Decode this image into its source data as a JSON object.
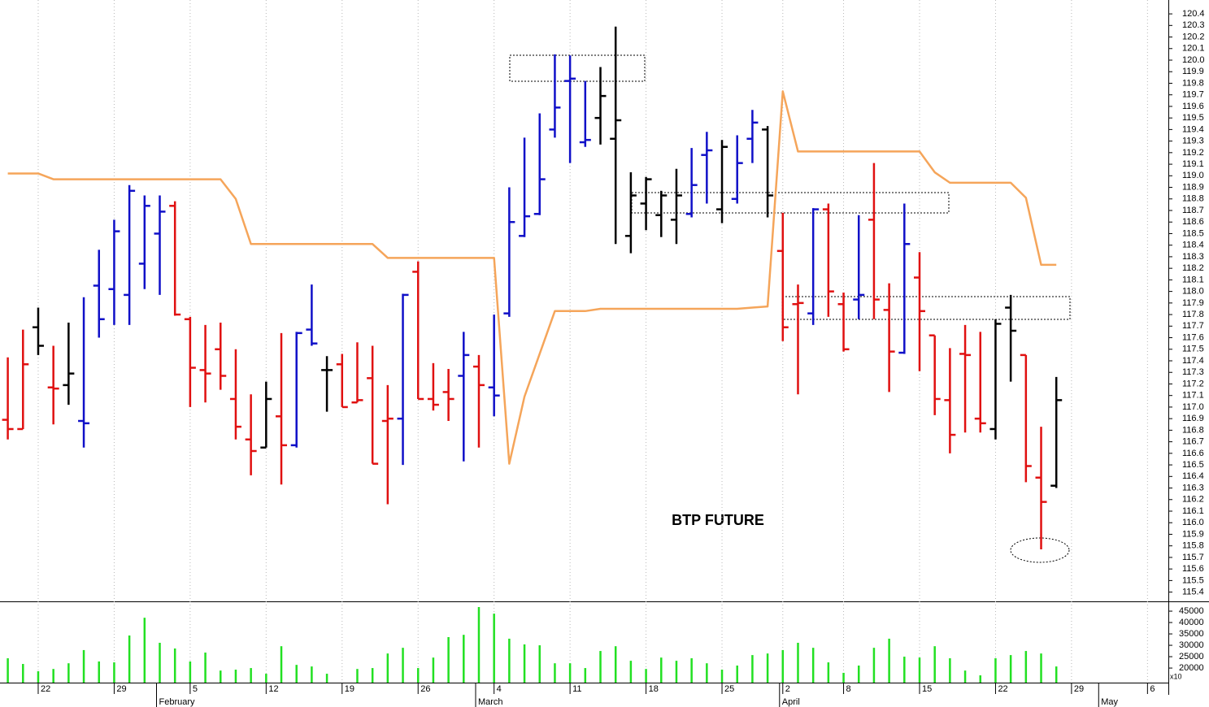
{
  "chart_data": {
    "type": "ohlc",
    "annotation": "BTP FUTURE",
    "categories": [
      null,
      null,
      "22",
      null,
      null,
      null,
      null,
      "29",
      null,
      null,
      null,
      null,
      "5",
      null,
      null,
      null,
      null,
      "12",
      null,
      null,
      null,
      null,
      "19",
      null,
      null,
      null,
      null,
      "26",
      null,
      null,
      null,
      null,
      "4",
      null,
      null,
      null,
      null,
      "11",
      null,
      null,
      null,
      null,
      "18",
      null,
      null,
      null,
      null,
      "25",
      null,
      null,
      null,
      "2",
      null,
      null,
      null,
      "8",
      null,
      null,
      null,
      null,
      "15",
      null,
      null,
      null,
      null,
      "22",
      null,
      null,
      null,
      null,
      "29",
      null,
      null,
      null,
      null,
      "6"
    ],
    "month_labels": [
      null,
      null,
      null,
      null,
      null,
      null,
      null,
      null,
      null,
      null,
      "February",
      null,
      null,
      null,
      null,
      null,
      null,
      null,
      null,
      null,
      null,
      null,
      null,
      null,
      null,
      null,
      null,
      null,
      null,
      null,
      null,
      "March",
      null,
      null,
      null,
      null,
      null,
      null,
      null,
      null,
      null,
      null,
      null,
      null,
      null,
      null,
      null,
      null,
      null,
      null,
      null,
      "April",
      null,
      null,
      null,
      null,
      null,
      null,
      null,
      null,
      null,
      null,
      null,
      null,
      null,
      null,
      null,
      null,
      null,
      null,
      null,
      null,
      "May",
      null,
      null,
      null
    ],
    "open": [
      116.89,
      116.81,
      117.69,
      117.17,
      117.19,
      116.88,
      118.05,
      118.02,
      117.97,
      118.24,
      118.5,
      118.74,
      117.76,
      117.32,
      117.5,
      117.07,
      116.72,
      116.65,
      116.92,
      116.67,
      117.67,
      117.32,
      117.37,
      117.04,
      117.25,
      116.88,
      116.9,
      118.17,
      117.07,
      117.13,
      117.27,
      117.35,
      117.17,
      117.81,
      118.48,
      118.67,
      119.4,
      119.82,
      119.29,
      119.5,
      119.32,
      118.48,
      118.76,
      118.66,
      118.62,
      118.67,
      119.18,
      118.71,
      118.8,
      119.32,
      119.4,
      118.35,
      117.89,
      117.81,
      118.71,
      117.89,
      117.93,
      118.62,
      117.84,
      117.47,
      118.12,
      117.62,
      117.06,
      117.46,
      116.9,
      116.81,
      117.86,
      117.45,
      116.39,
      116.32,
      null,
      null,
      null,
      null,
      null,
      null
    ],
    "high": [
      117.43,
      117.67,
      117.86,
      117.53,
      117.73,
      117.95,
      118.36,
      118.62,
      118.92,
      118.83,
      118.83,
      118.78,
      117.78,
      117.71,
      117.73,
      117.5,
      117.11,
      117.22,
      117.64,
      117.65,
      118.06,
      117.44,
      117.46,
      117.56,
      117.53,
      117.19,
      117.98,
      118.26,
      117.38,
      117.33,
      117.65,
      117.45,
      117.8,
      118.9,
      119.33,
      119.54,
      120.05,
      120.04,
      119.82,
      119.94,
      120.29,
      119.03,
      118.99,
      118.87,
      119.06,
      119.24,
      119.38,
      119.31,
      119.35,
      119.57,
      119.43,
      118.68,
      118.06,
      118.72,
      118.76,
      117.99,
      118.66,
      119.11,
      118.07,
      118.76,
      118.34,
      117.62,
      117.51,
      117.71,
      117.65,
      117.76,
      117.97,
      117.45,
      116.83,
      117.26,
      null,
      null,
      null,
      null,
      null,
      null
    ],
    "low": [
      116.72,
      116.81,
      117.45,
      116.85,
      117.02,
      116.65,
      117.6,
      117.71,
      117.71,
      118.02,
      117.97,
      117.79,
      117.0,
      117.04,
      117.15,
      116.72,
      116.41,
      116.65,
      116.33,
      116.65,
      117.53,
      116.96,
      117.0,
      117.04,
      116.51,
      116.16,
      116.5,
      117.07,
      116.97,
      116.88,
      116.53,
      116.65,
      116.92,
      117.78,
      118.47,
      118.66,
      119.33,
      119.11,
      119.25,
      119.27,
      118.41,
      118.33,
      118.53,
      118.47,
      118.41,
      118.64,
      118.76,
      118.59,
      118.76,
      119.11,
      118.64,
      117.57,
      117.11,
      117.71,
      117.78,
      117.48,
      117.76,
      117.76,
      117.13,
      117.46,
      117.31,
      116.93,
      116.6,
      116.78,
      116.78,
      116.72,
      117.22,
      116.35,
      115.77,
      116.3,
      null,
      null,
      null,
      null,
      null,
      null
    ],
    "close": [
      116.81,
      117.37,
      117.53,
      117.16,
      117.29,
      116.86,
      117.76,
      118.52,
      118.87,
      118.74,
      118.69,
      117.8,
      117.34,
      117.29,
      117.27,
      116.83,
      116.62,
      117.07,
      116.67,
      117.64,
      117.55,
      117.32,
      117.0,
      117.06,
      116.51,
      116.9,
      117.97,
      117.07,
      117.02,
      117.07,
      117.45,
      117.19,
      117.1,
      118.6,
      118.65,
      118.97,
      119.59,
      119.84,
      119.31,
      119.69,
      119.48,
      118.83,
      118.97,
      118.83,
      118.83,
      118.92,
      119.22,
      119.25,
      119.11,
      119.46,
      118.83,
      117.69,
      117.9,
      118.71,
      118.0,
      117.5,
      117.97,
      117.93,
      117.48,
      118.41,
      117.83,
      117.07,
      116.76,
      117.45,
      116.86,
      117.72,
      117.66,
      116.49,
      116.18,
      117.06,
      null,
      null,
      null,
      null,
      null,
      null
    ],
    "bar_colors": [
      "#e01010",
      "#e01010",
      "#000000",
      "#e01010",
      "#000000",
      "#1010c8",
      "#1010c8",
      "#1010c8",
      "#1010c8",
      "#1010c8",
      "#1010c8",
      "#e01010",
      "#e01010",
      "#e01010",
      "#e01010",
      "#e01010",
      "#e01010",
      "#000000",
      "#e01010",
      "#1010c8",
      "#1010c8",
      "#000000",
      "#e01010",
      "#e01010",
      "#e01010",
      "#e01010",
      "#1010c8",
      "#e01010",
      "#e01010",
      "#e01010",
      "#1010c8",
      "#e01010",
      "#1010c8",
      "#1010c8",
      "#1010c8",
      "#1010c8",
      "#1010c8",
      "#1010c8",
      "#1010c8",
      "#000000",
      "#000000",
      "#000000",
      "#000000",
      "#000000",
      "#000000",
      "#1010c8",
      "#1010c8",
      "#000000",
      "#1010c8",
      "#1010c8",
      "#000000",
      "#e01010",
      "#e01010",
      "#1010c8",
      "#e01010",
      "#e01010",
      "#1010c8",
      "#e01010",
      "#e01010",
      "#1010c8",
      "#e01010",
      "#e01010",
      "#e01010",
      "#e01010",
      "#e01010",
      "#000000",
      "#000000",
      "#e01010",
      "#e01010",
      "#000000",
      null,
      null,
      null,
      null,
      null,
      null
    ],
    "ylim": [
      115.32,
      120.52
    ],
    "yticks": [
      115.4,
      115.5,
      115.6,
      115.7,
      115.8,
      115.9,
      {
        "value": 116,
        "label": "116.0"
      },
      116.1,
      116.2,
      116.3,
      116.4,
      116.5,
      116.6,
      116.7,
      116.8,
      116.9,
      {
        "value": 117,
        "label": "117.0"
      },
      117.1,
      117.2,
      117.3,
      117.4,
      117.5,
      117.6,
      117.7,
      117.8,
      117.9,
      {
        "value": 118,
        "label": "118.0"
      },
      118.1,
      118.2,
      118.3,
      118.4,
      118.5,
      118.6,
      118.7,
      118.8,
      118.9,
      {
        "value": 119,
        "label": "119.0"
      },
      119.1,
      119.2,
      119.3,
      119.4,
      119.5,
      119.6,
      119.7,
      119.8,
      119.9,
      {
        "value": 120,
        "label": "120.0"
      },
      120.1,
      120.2,
      120.3,
      120.4
    ],
    "grid": true,
    "series": [
      {
        "type": "line",
        "color": "#f5a55a",
        "values": [
          119.02,
          119.02,
          119.02,
          118.97,
          118.97,
          118.97,
          118.97,
          118.97,
          118.97,
          118.97,
          118.97,
          118.97,
          118.97,
          118.97,
          118.97,
          118.8,
          118.41,
          118.41,
          118.41,
          118.41,
          118.41,
          118.41,
          118.41,
          118.41,
          118.41,
          118.29,
          118.29,
          118.29,
          118.29,
          118.29,
          118.29,
          118.29,
          118.29,
          116.51,
          117.09,
          117.46,
          117.83,
          117.83,
          117.83,
          117.85,
          117.85,
          117.85,
          117.85,
          117.85,
          117.85,
          117.85,
          117.85,
          117.85,
          117.85,
          117.86,
          117.87,
          119.73,
          119.21,
          119.21,
          119.21,
          119.21,
          119.21,
          119.21,
          119.21,
          119.21,
          119.21,
          119.03,
          118.94,
          118.94,
          118.94,
          118.94,
          118.94,
          118.81,
          118.23,
          118.23,
          null,
          null,
          null,
          null,
          null,
          null
        ]
      }
    ],
    "volume": {
      "type": "bar",
      "color": "#22e022",
      "unit_label": "x10",
      "values": [
        24300,
        21800,
        18600,
        19600,
        22100,
        27900,
        22900,
        22500,
        34300,
        42100,
        31100,
        28600,
        22900,
        26800,
        18900,
        19300,
        20000,
        17500,
        29600,
        21400,
        20700,
        17500,
        null,
        19600,
        20000,
        26400,
        28900,
        20000,
        24600,
        33600,
        34600,
        46800,
        43900,
        32900,
        30400,
        30000,
        22100,
        22100,
        20000,
        27500,
        29600,
        23200,
        19600,
        24600,
        23200,
        24300,
        22100,
        19300,
        21100,
        25700,
        26400,
        27900,
        31100,
        28900,
        22500,
        17900,
        21100,
        28900,
        32900,
        25000,
        24600,
        29600,
        24300,
        18900,
        16800,
        24300,
        25700,
        27500,
        26400,
        20700,
        null,
        null,
        null,
        null,
        null,
        null
      ],
      "ylim": [
        13600,
        49300
      ],
      "yticks": [
        20000,
        25000,
        30000,
        35000,
        40000,
        45000
      ]
    }
  }
}
